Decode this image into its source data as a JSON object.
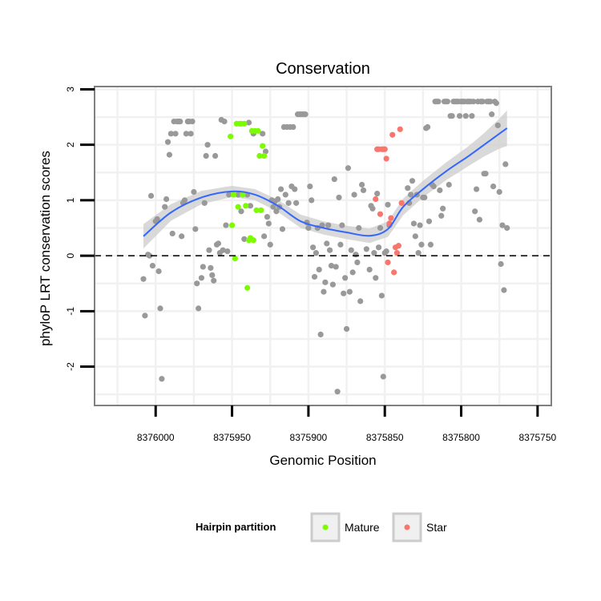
{
  "chart_data": {
    "type": "scatter",
    "title": "Conservation",
    "xlabel": "Genomic Position",
    "ylabel": "phyloP LRT conservation scores",
    "x_reversed": true,
    "xlim": [
      8376040,
      8375741
    ],
    "ylim": [
      -2.7,
      3.05
    ],
    "x_ticks": [
      8376000,
      8375950,
      8375900,
      8375850,
      8375800,
      8375750
    ],
    "x_tick_labels": [
      "8376000",
      "8375950",
      "8375900",
      "8375850",
      "8375800",
      "8375750"
    ],
    "y_ticks": [
      -2,
      -1,
      0,
      1,
      2,
      3
    ],
    "y_tick_labels": [
      "-2",
      "-1",
      "0",
      "1",
      "2",
      "3"
    ],
    "grid": true,
    "reference_line": {
      "y": 0,
      "style": "dashed"
    },
    "legend": {
      "title": "Hairpin partition",
      "position": "bottom",
      "entries": [
        {
          "label": "Mature",
          "color": "#7CFC00"
        },
        {
          "label": "Star",
          "color": "#F8766D"
        }
      ]
    },
    "colors": {
      "other": "#999999",
      "Mature": "#7CFC00",
      "Star": "#F8766D",
      "smooth": "#3366FF",
      "ribbon": "#CCCCCC"
    },
    "series": [
      {
        "name": "Other",
        "points": [
          [
            8376008,
            -0.42
          ],
          [
            8376007,
            -1.08
          ],
          [
            8376005,
            0.02
          ],
          [
            8376004,
            0.0
          ],
          [
            8376003,
            1.08
          ],
          [
            8376002,
            -0.18
          ],
          [
            8376000,
            0.62
          ],
          [
            8375999,
            0.66
          ],
          [
            8375998,
            -0.28
          ],
          [
            8375997,
            -0.95
          ],
          [
            8375996,
            -2.22
          ],
          [
            8375994,
            0.88
          ],
          [
            8375993,
            1.02
          ],
          [
            8375992,
            2.05
          ],
          [
            8375991,
            1.82
          ],
          [
            8375990,
            2.2
          ],
          [
            8375989,
            0.4
          ],
          [
            8375988,
            2.42
          ],
          [
            8375987,
            2.2
          ],
          [
            8375986,
            2.42
          ],
          [
            8375985,
            2.42
          ],
          [
            8375984,
            2.42
          ],
          [
            8375983,
            0.35
          ],
          [
            8375982,
            0.95
          ],
          [
            8375981,
            1.0
          ],
          [
            8375980,
            2.2
          ],
          [
            8375979,
            2.42
          ],
          [
            8375978,
            2.42
          ],
          [
            8375977,
            2.2
          ],
          [
            8375976,
            2.42
          ],
          [
            8375975,
            1.15
          ],
          [
            8375974,
            0.48
          ],
          [
            8375973,
            -0.5
          ],
          [
            8375972,
            -0.95
          ],
          [
            8375970,
            -0.4
          ],
          [
            8375969,
            -0.2
          ],
          [
            8375968,
            0.95
          ],
          [
            8375967,
            1.8
          ],
          [
            8375966,
            2.0
          ],
          [
            8375965,
            0.1
          ],
          [
            8375964,
            -0.22
          ],
          [
            8375963,
            -0.35
          ],
          [
            8375962,
            -0.45
          ],
          [
            8375961,
            1.8
          ],
          [
            8375960,
            0.2
          ],
          [
            8375959,
            0.22
          ],
          [
            8375958,
            0.05
          ],
          [
            8375957,
            2.45
          ],
          [
            8375956,
            0.1
          ],
          [
            8375955,
            2.42
          ],
          [
            8375954,
            0.55
          ],
          [
            8375953,
            0.08
          ],
          [
            8375952,
            1.1
          ],
          [
            8375946,
            1.1
          ],
          [
            8375944,
            0.8
          ],
          [
            8375942,
            0.3
          ],
          [
            8375940,
            1.1
          ],
          [
            8375939,
            2.4
          ],
          [
            8375938,
            0.9
          ],
          [
            8375936,
            2.2
          ],
          [
            8375930,
            2.2
          ],
          [
            8375929,
            0.35
          ],
          [
            8375928,
            1.88
          ],
          [
            8375927,
            0.7
          ],
          [
            8375926,
            0.58
          ],
          [
            8375925,
            0.2
          ],
          [
            8375924,
            1.0
          ],
          [
            8375923,
            0.88
          ],
          [
            8375922,
            0.98
          ],
          [
            8375921,
            0.8
          ],
          [
            8375920,
            1.02
          ],
          [
            8375919,
            0.88
          ],
          [
            8375918,
            1.2
          ],
          [
            8375917,
            0.48
          ],
          [
            8375916,
            2.32
          ],
          [
            8375915,
            1.1
          ],
          [
            8375914,
            2.32
          ],
          [
            8375913,
            0.95
          ],
          [
            8375912,
            2.32
          ],
          [
            8375911,
            1.25
          ],
          [
            8375910,
            2.32
          ],
          [
            8375909,
            1.2
          ],
          [
            8375908,
            0.95
          ],
          [
            8375907,
            2.55
          ],
          [
            8375906,
            2.55
          ],
          [
            8375905,
            2.55
          ],
          [
            8375904,
            2.55
          ],
          [
            8375903,
            2.55
          ],
          [
            8375902,
            2.55
          ],
          [
            8375901,
            0.6
          ],
          [
            8375900,
            0.5
          ],
          [
            8375899,
            1.25
          ],
          [
            8375898,
            1.0
          ],
          [
            8375897,
            0.15
          ],
          [
            8375896,
            -0.38
          ],
          [
            8375895,
            0.05
          ],
          [
            8375894,
            0.5
          ],
          [
            8375893,
            -0.25
          ],
          [
            8375892,
            -1.42
          ],
          [
            8375891,
            0.55
          ],
          [
            8375890,
            -0.65
          ],
          [
            8375889,
            -0.48
          ],
          [
            8375888,
            0.22
          ],
          [
            8375887,
            0.55
          ],
          [
            8375886,
            0.1
          ],
          [
            8375885,
            -0.18
          ],
          [
            8375884,
            -0.52
          ],
          [
            8375883,
            1.38
          ],
          [
            8375882,
            -0.2
          ],
          [
            8375881,
            -2.45
          ],
          [
            8375880,
            1.05
          ],
          [
            8375879,
            0.2
          ],
          [
            8375878,
            0.55
          ],
          [
            8375877,
            -0.68
          ],
          [
            8375876,
            -0.4
          ],
          [
            8375875,
            -1.32
          ],
          [
            8375874,
            1.58
          ],
          [
            8375873,
            -0.65
          ],
          [
            8375872,
            0.1
          ],
          [
            8375871,
            -0.3
          ],
          [
            8375870,
            1.1
          ],
          [
            8375869,
            0.02
          ],
          [
            8375868,
            -0.12
          ],
          [
            8375867,
            0.5
          ],
          [
            8375866,
            -0.82
          ],
          [
            8375865,
            1.28
          ],
          [
            8375864,
            1.18
          ],
          [
            8375862,
            0.12
          ],
          [
            8375860,
            -0.25
          ],
          [
            8375859,
            0.9
          ],
          [
            8375858,
            0.85
          ],
          [
            8375857,
            0.05
          ],
          [
            8375856,
            -0.4
          ],
          [
            8375855,
            1.12
          ],
          [
            8375854,
            0.15
          ],
          [
            8375853,
            0.5
          ],
          [
            8375852,
            -0.72
          ],
          [
            8375851,
            -2.18
          ],
          [
            8375850,
            0.05
          ],
          [
            8375849,
            0.08
          ],
          [
            8375848,
            0.92
          ],
          [
            8375847,
            0.55
          ],
          [
            8375835,
            1.22
          ],
          [
            8375834,
            0.95
          ],
          [
            8375833,
            1.1
          ],
          [
            8375832,
            1.35
          ],
          [
            8375831,
            0.58
          ],
          [
            8375830,
            0.35
          ],
          [
            8375829,
            1.1
          ],
          [
            8375828,
            0.05
          ],
          [
            8375827,
            0.55
          ],
          [
            8375826,
            0.2
          ],
          [
            8375825,
            1.05
          ],
          [
            8375824,
            1.05
          ],
          [
            8375823,
            2.3
          ],
          [
            8375822,
            2.32
          ],
          [
            8375821,
            0.62
          ],
          [
            8375820,
            0.2
          ],
          [
            8375819,
            1.28
          ],
          [
            8375818,
            1.25
          ],
          [
            8375817,
            2.78
          ],
          [
            8375816,
            2.78
          ],
          [
            8375815,
            2.78
          ],
          [
            8375814,
            1.18
          ],
          [
            8375813,
            0.72
          ],
          [
            8375812,
            0.85
          ],
          [
            8375811,
            2.78
          ],
          [
            8375810,
            2.78
          ],
          [
            8375809,
            2.78
          ],
          [
            8375808,
            1.28
          ],
          [
            8375807,
            2.52
          ],
          [
            8375806,
            2.52
          ],
          [
            8375805,
            2.78
          ],
          [
            8375804,
            2.78
          ],
          [
            8375803,
            2.78
          ],
          [
            8375802,
            2.78
          ],
          [
            8375801,
            2.52
          ],
          [
            8375800,
            2.78
          ],
          [
            8375799,
            2.78
          ],
          [
            8375798,
            2.78
          ],
          [
            8375797,
            2.52
          ],
          [
            8375796,
            2.78
          ],
          [
            8375795,
            2.78
          ],
          [
            8375794,
            2.78
          ],
          [
            8375793,
            2.52
          ],
          [
            8375792,
            2.78
          ],
          [
            8375791,
            0.8
          ],
          [
            8375790,
            1.2
          ],
          [
            8375789,
            2.78
          ],
          [
            8375788,
            0.65
          ],
          [
            8375787,
            2.78
          ],
          [
            8375786,
            2.78
          ],
          [
            8375785,
            1.48
          ],
          [
            8375784,
            1.48
          ],
          [
            8375783,
            2.78
          ],
          [
            8375782,
            2.78
          ],
          [
            8375781,
            2.78
          ],
          [
            8375780,
            2.55
          ],
          [
            8375779,
            1.25
          ],
          [
            8375778,
            2.78
          ],
          [
            8375777,
            2.75
          ],
          [
            8375776,
            2.35
          ],
          [
            8375775,
            1.15
          ],
          [
            8375774,
            -0.15
          ],
          [
            8375773,
            0.55
          ],
          [
            8375772,
            -0.62
          ],
          [
            8375771,
            1.65
          ],
          [
            8375770,
            0.5
          ]
        ]
      },
      {
        "name": "Mature",
        "points": [
          [
            8375951,
            2.15
          ],
          [
            8375950,
            0.55
          ],
          [
            8375949,
            1.1
          ],
          [
            8375948,
            -0.05
          ],
          [
            8375947,
            2.38
          ],
          [
            8375946,
            0.88
          ],
          [
            8375945,
            2.38
          ],
          [
            8375944,
            2.38
          ],
          [
            8375943,
            1.1
          ],
          [
            8375942,
            2.38
          ],
          [
            8375941,
            0.9
          ],
          [
            8375940,
            -0.58
          ],
          [
            8375939,
            0.28
          ],
          [
            8375938,
            0.32
          ],
          [
            8375937,
            2.25
          ],
          [
            8375936,
            0.28
          ],
          [
            8375935,
            2.25
          ],
          [
            8375934,
            0.82
          ],
          [
            8375933,
            2.25
          ],
          [
            8375932,
            1.8
          ],
          [
            8375931,
            0.82
          ],
          [
            8375930,
            1.98
          ],
          [
            8375929,
            1.8
          ]
        ]
      },
      {
        "name": "Star",
        "points": [
          [
            8375856,
            1.02
          ],
          [
            8375855,
            1.92
          ],
          [
            8375854,
            1.92
          ],
          [
            8375853,
            0.75
          ],
          [
            8375852,
            1.92
          ],
          [
            8375851,
            1.92
          ],
          [
            8375850,
            1.92
          ],
          [
            8375849,
            1.75
          ],
          [
            8375848,
            -0.12
          ],
          [
            8375847,
            0.58
          ],
          [
            8375846,
            0.68
          ],
          [
            8375845,
            2.18
          ],
          [
            8375844,
            -0.3
          ],
          [
            8375843,
            0.15
          ],
          [
            8375842,
            0.05
          ],
          [
            8375841,
            0.18
          ],
          [
            8375840,
            2.28
          ],
          [
            8375839,
            0.95
          ]
        ]
      }
    ],
    "smooth_curve": {
      "x": [
        8376008,
        8375990,
        8375970,
        8375950,
        8375935,
        8375920,
        8375905,
        8375890,
        8375875,
        8375860,
        8375848,
        8375838,
        8375825,
        8375810,
        8375795,
        8375785,
        8375775,
        8375770
      ],
      "y": [
        0.35,
        0.78,
        1.05,
        1.16,
        1.1,
        0.9,
        0.62,
        0.5,
        0.42,
        0.36,
        0.48,
        0.88,
        1.2,
        1.52,
        1.8,
        2.0,
        2.2,
        2.3
      ],
      "ribbon_halfwidth": [
        0.22,
        0.15,
        0.12,
        0.1,
        0.1,
        0.11,
        0.12,
        0.12,
        0.12,
        0.13,
        0.14,
        0.15,
        0.15,
        0.16,
        0.18,
        0.21,
        0.27,
        0.32
      ]
    }
  }
}
